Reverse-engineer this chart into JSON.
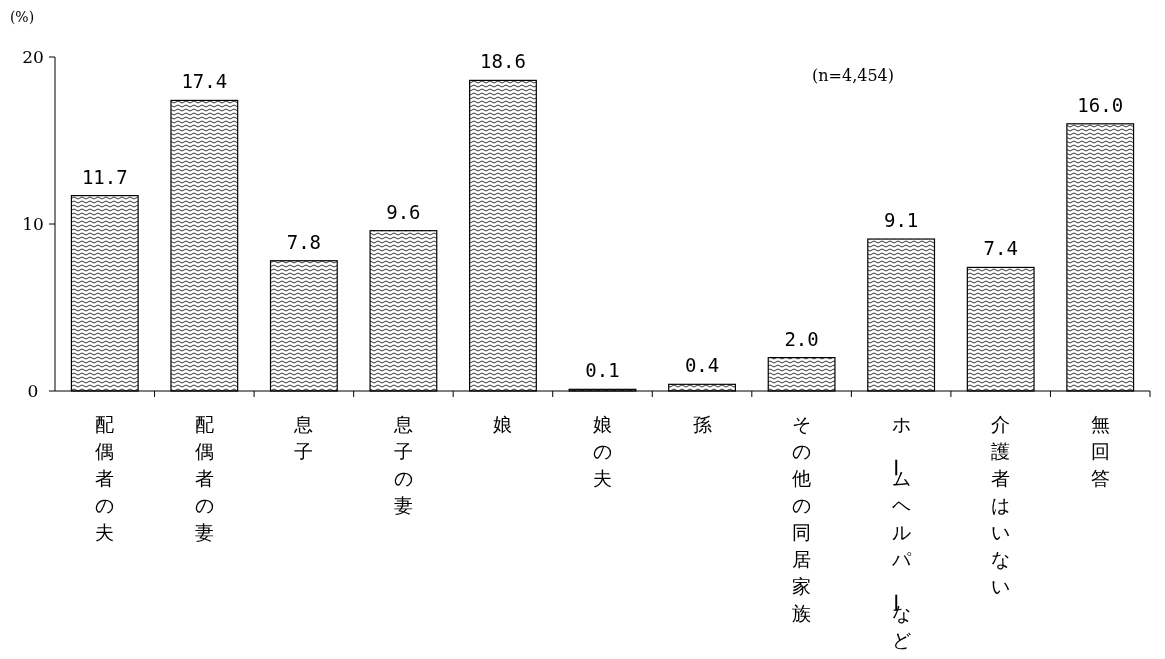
{
  "chart_data": {
    "type": "bar",
    "ylabel": "(%)",
    "categories": [
      "配偶者の夫",
      "配偶者の妻",
      "息子",
      "息子の妻",
      "娘",
      "娘の夫",
      "孫",
      "その他の同居家族",
      "ホームヘルパーなど",
      "介護者はいない",
      "無回答"
    ],
    "values": [
      11.7,
      17.4,
      7.8,
      9.6,
      18.6,
      0.1,
      0.4,
      2.0,
      9.1,
      7.4,
      16.0
    ],
    "value_labels": [
      "11.7",
      "17.4",
      "7.8",
      "9.6",
      "18.6",
      "0.1",
      "0.4",
      "2.0",
      "9.1",
      "7.4",
      "16.0"
    ],
    "color": "#000000",
    "ylim": [
      0,
      20
    ],
    "yticks": [
      0,
      10,
      20
    ],
    "grid": false,
    "annotations": [
      "(n=4,454)"
    ]
  }
}
